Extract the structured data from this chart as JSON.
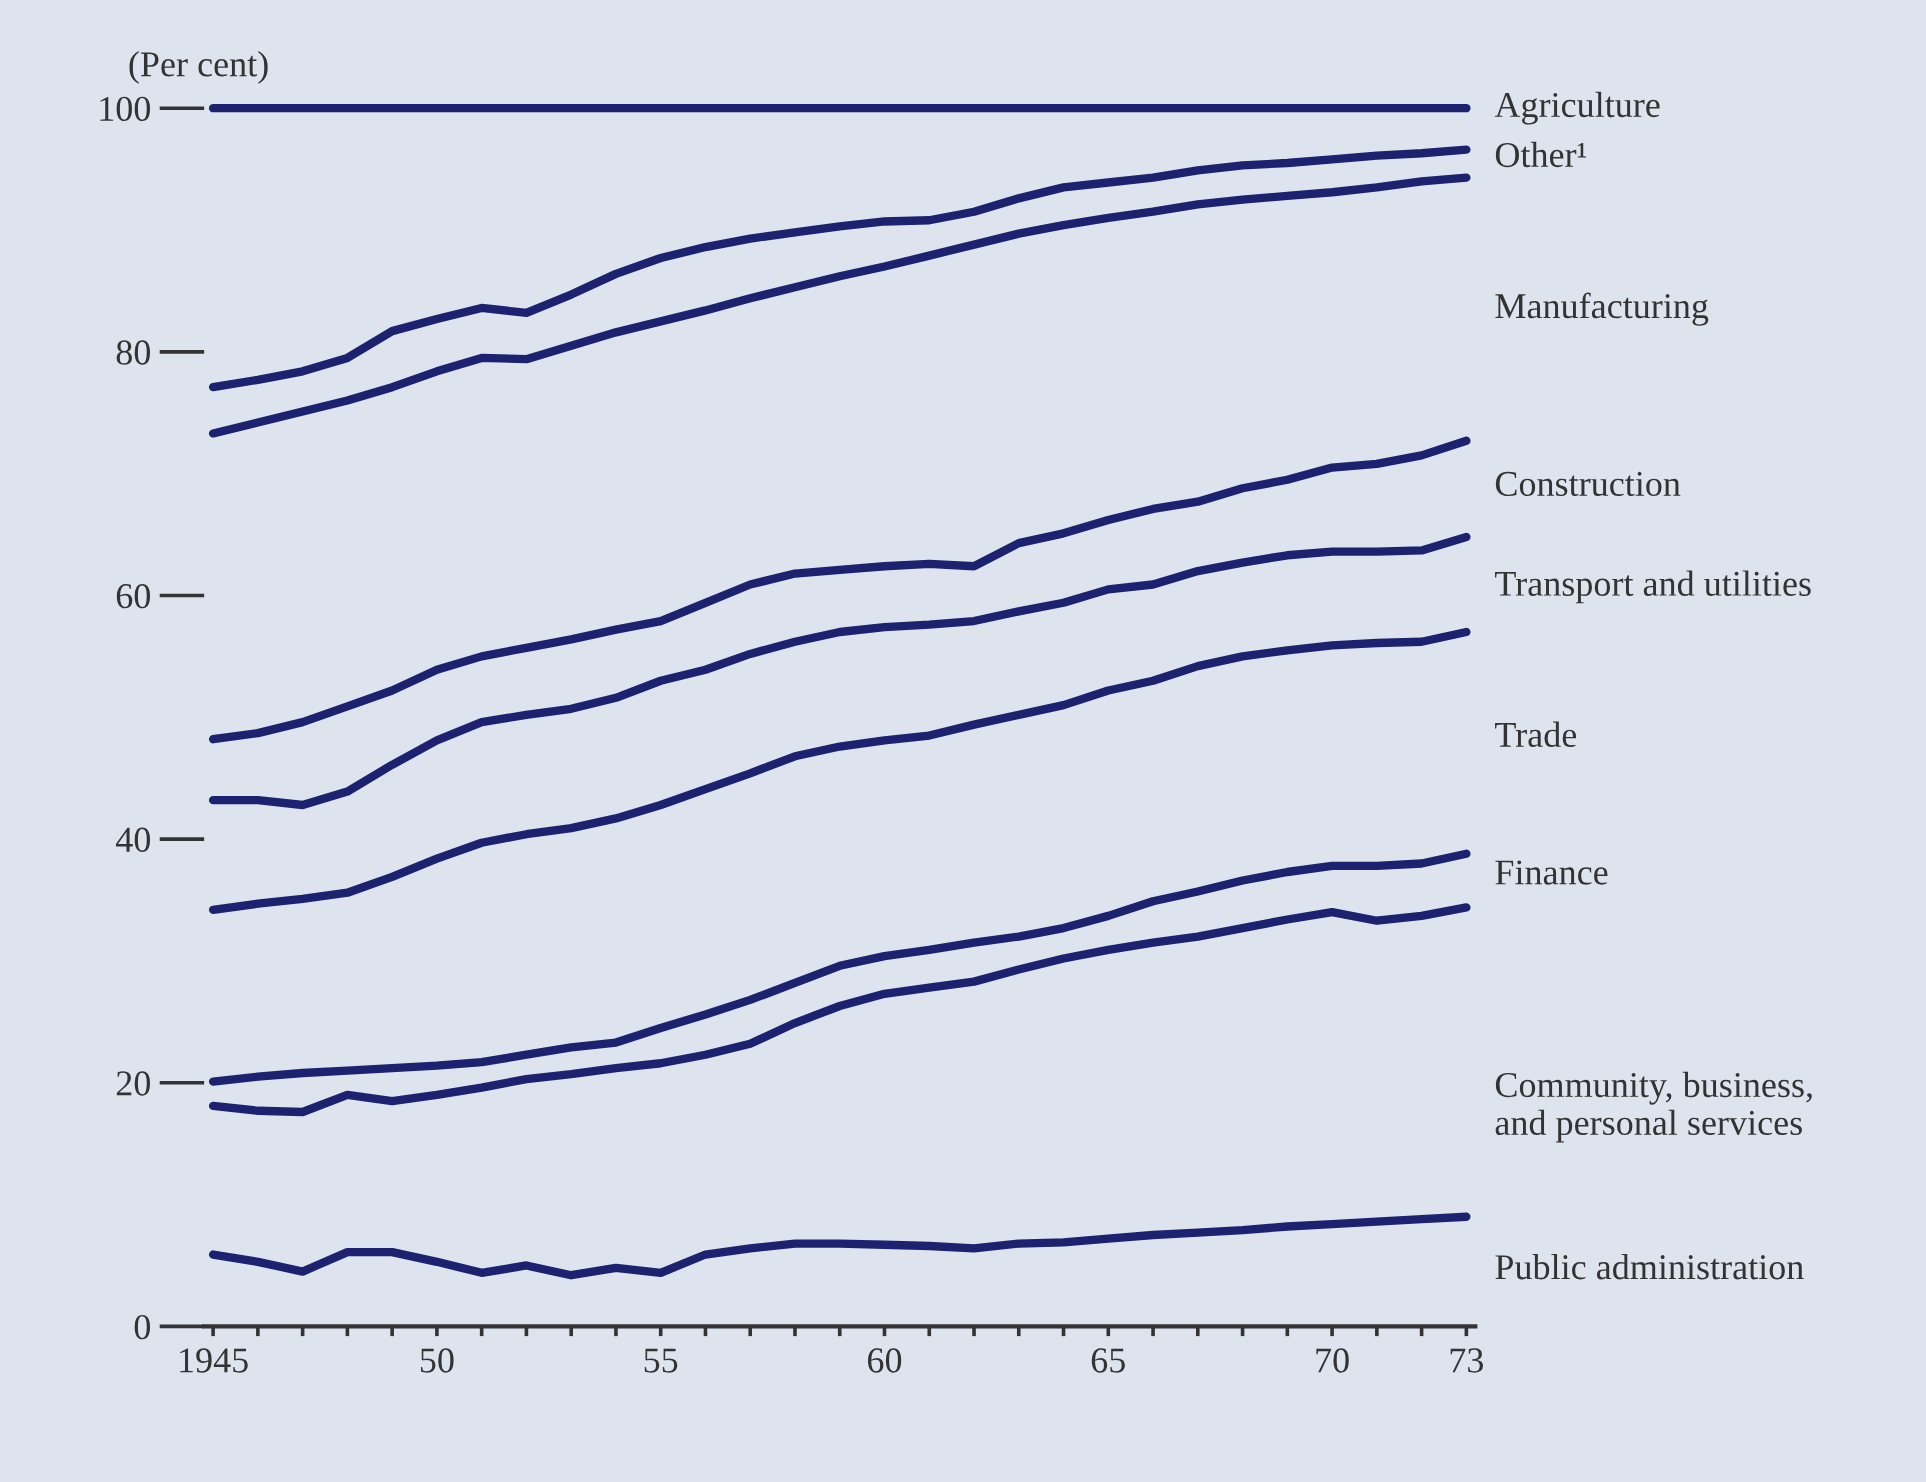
{
  "chart_data": {
    "type": "line",
    "ylabel": "(Per cent)",
    "x": [
      1945,
      1946,
      1947,
      1948,
      1949,
      1950,
      1951,
      1952,
      1953,
      1954,
      1955,
      1956,
      1957,
      1958,
      1959,
      1960,
      1961,
      1962,
      1963,
      1964,
      1965,
      1966,
      1967,
      1968,
      1969,
      1970,
      1971,
      1972,
      1973
    ],
    "series": [
      {
        "color": "#1c2170",
        "values": [
          100,
          100,
          100,
          100,
          100,
          100,
          100,
          100,
          100,
          100,
          100,
          100,
          100,
          100,
          100,
          100,
          100,
          100,
          100,
          100,
          100,
          100,
          100,
          100,
          100,
          100,
          100,
          100,
          100
        ]
      },
      {
        "color": "#1c2170",
        "values": [
          77.1,
          77.7,
          78.4,
          79.5,
          81.7,
          82.7,
          83.6,
          83.2,
          84.7,
          86.4,
          87.7,
          88.6,
          89.3,
          89.8,
          90.3,
          90.7,
          90.8,
          91.5,
          92.6,
          93.5,
          93.9,
          94.3,
          94.9,
          95.3,
          95.5,
          95.8,
          96.1,
          96.3,
          96.6
        ]
      },
      {
        "color": "#1c2170",
        "values": [
          73.3,
          74.2,
          75.1,
          76.0,
          77.1,
          78.4,
          79.5,
          79.4,
          80.5,
          81.6,
          82.5,
          83.4,
          84.4,
          85.3,
          86.2,
          87.0,
          87.9,
          88.8,
          89.7,
          90.4,
          91.0,
          91.5,
          92.1,
          92.5,
          92.8,
          93.1,
          93.5,
          94.0,
          94.3
        ]
      },
      {
        "color": "#1c2170",
        "values": [
          48.2,
          48.7,
          49.6,
          50.9,
          52.2,
          53.9,
          55.0,
          55.7,
          56.4,
          57.2,
          57.9,
          59.4,
          60.9,
          61.8,
          62.1,
          62.4,
          62.6,
          62.4,
          64.3,
          65.1,
          66.2,
          67.1,
          67.7,
          68.8,
          69.5,
          70.5,
          70.8,
          71.5,
          72.7
        ]
      },
      {
        "color": "#1c2170",
        "values": [
          43.2,
          43.2,
          42.8,
          43.9,
          46.1,
          48.1,
          49.6,
          50.2,
          50.7,
          51.6,
          53.0,
          53.9,
          55.2,
          56.2,
          57.0,
          57.4,
          57.6,
          57.9,
          58.7,
          59.4,
          60.5,
          60.9,
          62.0,
          62.7,
          63.3,
          63.6,
          63.6,
          63.7,
          64.8
        ]
      },
      {
        "color": "#1c2170",
        "values": [
          34.2,
          34.7,
          35.1,
          35.6,
          36.9,
          38.4,
          39.7,
          40.4,
          40.9,
          41.7,
          42.8,
          44.1,
          45.4,
          46.8,
          47.6,
          48.1,
          48.5,
          49.4,
          50.2,
          51.0,
          52.2,
          53.0,
          54.2,
          55.0,
          55.5,
          55.9,
          56.1,
          56.2,
          57.0
        ]
      },
      {
        "color": "#1c2170",
        "values": [
          20.1,
          20.5,
          20.8,
          21.0,
          21.2,
          21.4,
          21.7,
          22.3,
          22.9,
          23.3,
          24.5,
          25.6,
          26.8,
          28.2,
          29.6,
          30.4,
          30.9,
          31.5,
          32.0,
          32.7,
          33.7,
          34.9,
          35.7,
          36.6,
          37.3,
          37.8,
          37.8,
          38.0,
          38.8
        ]
      },
      {
        "color": "#1c2170",
        "values": [
          18.1,
          17.7,
          17.6,
          19.0,
          18.5,
          19.0,
          19.6,
          20.3,
          20.7,
          21.2,
          21.6,
          22.3,
          23.2,
          24.9,
          26.3,
          27.3,
          27.8,
          28.3,
          29.3,
          30.2,
          30.9,
          31.5,
          32.0,
          32.7,
          33.4,
          34.0,
          33.3,
          33.7,
          34.4
        ]
      },
      {
        "color": "#1c2170",
        "values": [
          5.9,
          5.3,
          4.5,
          6.1,
          6.1,
          5.3,
          4.4,
          5.0,
          4.2,
          4.8,
          4.4,
          5.9,
          6.4,
          6.8,
          6.8,
          6.7,
          6.6,
          6.4,
          6.8,
          6.9,
          7.2,
          7.5,
          7.7,
          7.9,
          8.2,
          8.4,
          8.6,
          8.8,
          9.0
        ]
      }
    ],
    "annotations": [
      "Agriculture",
      "Other¹",
      "Manufacturing",
      "Construction",
      "Transport and utilities",
      "Trade",
      "Finance",
      "Community, business,\nand personal services",
      "Public administration"
    ],
    "xlim": [
      1944.8,
      1973.2
    ],
    "ylim": [
      0,
      100
    ],
    "yticks": [
      0,
      20,
      40,
      60,
      80,
      100
    ],
    "xticks": [
      {
        "value": 1945,
        "label": "1945"
      },
      {
        "value": 1946,
        "label": null
      },
      {
        "value": 1947,
        "label": null
      },
      {
        "value": 1948,
        "label": null
      },
      {
        "value": 1949,
        "label": null
      },
      {
        "value": 1950,
        "label": "50"
      },
      {
        "value": 1951,
        "label": null
      },
      {
        "value": 1952,
        "label": null
      },
      {
        "value": 1953,
        "label": null
      },
      {
        "value": 1954,
        "label": null
      },
      {
        "value": 1955,
        "label": "55"
      },
      {
        "value": 1956,
        "label": null
      },
      {
        "value": 1957,
        "label": null
      },
      {
        "value": 1958,
        "label": null
      },
      {
        "value": 1959,
        "label": null
      },
      {
        "value": 1960,
        "label": "60"
      },
      {
        "value": 1961,
        "label": null
      },
      {
        "value": 1962,
        "label": null
      },
      {
        "value": 1963,
        "label": null
      },
      {
        "value": 1964,
        "label": null
      },
      {
        "value": 1965,
        "label": "65"
      },
      {
        "value": 1966,
        "label": null
      },
      {
        "value": 1967,
        "label": null
      },
      {
        "value": 1968,
        "label": null
      },
      {
        "value": 1969,
        "label": null
      },
      {
        "value": 1970,
        "label": "70"
      },
      {
        "value": 1971,
        "label": null
      },
      {
        "value": 1972,
        "label": null
      },
      {
        "value": 1973,
        "label": "73"
      }
    ],
    "grid": false,
    "legend": false,
    "marker": "none",
    "line_style": "solid"
  }
}
